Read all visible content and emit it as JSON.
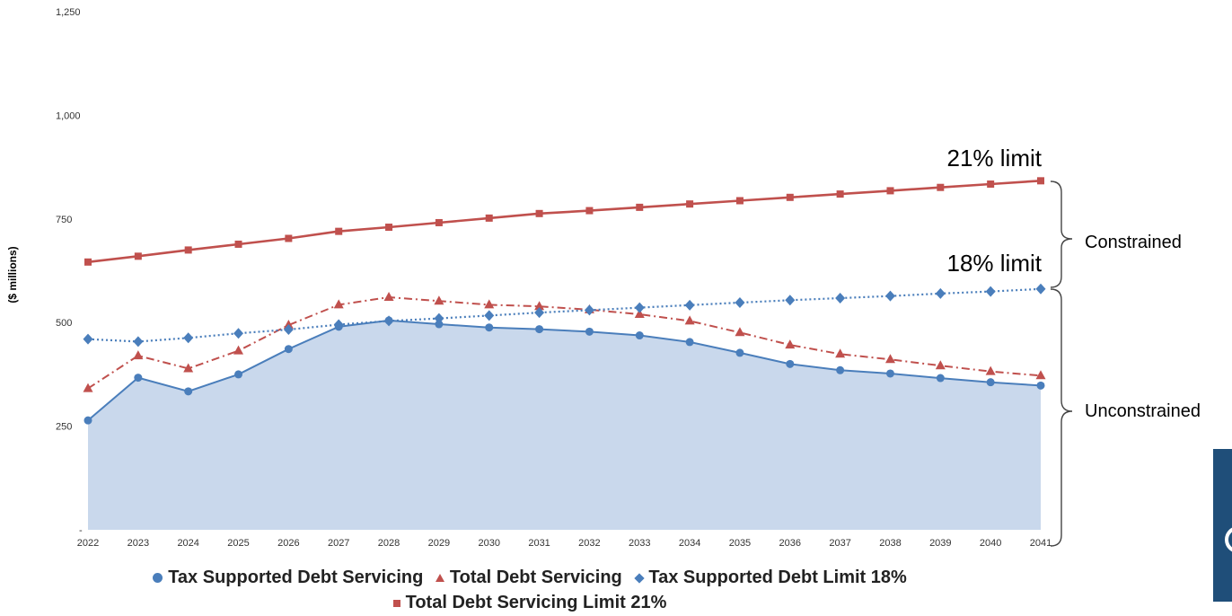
{
  "chart_data": {
    "type": "line",
    "x": [
      "2022",
      "2023",
      "2024",
      "2025",
      "2026",
      "2027",
      "2028",
      "2029",
      "2030",
      "2031",
      "2032",
      "2033",
      "2034",
      "2035",
      "2036",
      "2037",
      "2038",
      "2039",
      "2040",
      "2041"
    ],
    "series": [
      {
        "name": "Tax Supported Debt Servicing",
        "style": "area-solid",
        "marker": "circle",
        "color": "#4a7ebb",
        "fill": "#c9d8ec",
        "values": [
          264,
          367,
          334,
          375,
          436,
          490,
          505,
          496,
          488,
          484,
          478,
          469,
          453,
          427,
          400,
          385,
          377,
          366,
          356,
          348
        ]
      },
      {
        "name": "Total Debt Servicing",
        "style": "dash-dot",
        "marker": "triangle",
        "color": "#c0504d",
        "values": [
          341,
          420,
          389,
          432,
          494,
          543,
          561,
          552,
          543,
          539,
          531,
          520,
          504,
          476,
          446,
          424,
          411,
          396,
          382,
          372
        ]
      },
      {
        "name": "Tax Supported Debt Limit 18%",
        "style": "dotted",
        "marker": "diamond",
        "color": "#4a7ebb",
        "values": [
          460,
          454,
          463,
          474,
          483,
          495,
          504,
          510,
          517,
          524,
          530,
          536,
          542,
          548,
          554,
          559,
          564,
          570,
          575,
          581
        ]
      },
      {
        "name": "Total Debt Servicing Limit 21%",
        "style": "solid",
        "marker": "square",
        "color": "#c0504d",
        "values": [
          646,
          660,
          675,
          689,
          703,
          720,
          730,
          741,
          752,
          763,
          770,
          778,
          786,
          794,
          802,
          810,
          818,
          826,
          834,
          842
        ]
      }
    ],
    "ylabel": "($ millions)",
    "ylim": [
      0,
      1250
    ],
    "y_ticks": [
      0,
      250,
      500,
      750,
      1000,
      1250
    ],
    "y_tick_labels": [
      "-",
      "250",
      "500",
      "750",
      "1,000",
      "1,250"
    ],
    "grid": false,
    "legend_position": "bottom",
    "annotations": {
      "limit_21": "21% limit",
      "limit_18": "18% limit",
      "constrained": "Constrained",
      "unconstrained": "Unconstrained"
    }
  },
  "legend_markers": {
    "circle": "circle-marker-icon",
    "triangle": "triangle-marker-icon",
    "diamond": "diamond-marker-icon",
    "square": "square-marker-icon"
  }
}
